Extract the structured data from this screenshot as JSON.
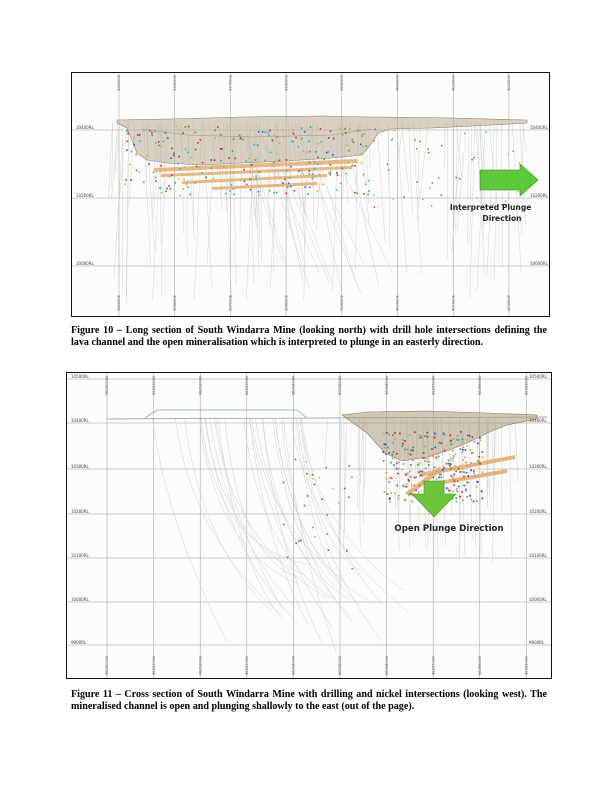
{
  "figure10": {
    "easting_labels": [
      "395000E",
      "396000E",
      "397000E",
      "398000E",
      "399000E",
      "400000E",
      "401000E",
      "402000E"
    ],
    "rl_labels": [
      "10400RL",
      "10200RL",
      "10000RL"
    ],
    "arrow_text": "Interpreted Plunge Direction",
    "arrow_color": "#5cc83a",
    "caption": "Figure 10 – Long section of South Windarra Mine (looking north) with drill hole intersections defining the lava channel and the open mineralisation which is interpreted to plunge in an easterly direction."
  },
  "figure11": {
    "northing_labels": [
      "6825000N",
      "6825100N",
      "6825200N",
      "6825300N",
      "6825400N",
      "6825500N",
      "6825600N",
      "6825700N",
      "6825800N",
      "6825900N"
    ],
    "rl_labels": [
      "10500RL",
      "10400RL",
      "10300RL",
      "10200RL",
      "10100RL",
      "10000RL",
      "9900RL"
    ],
    "arrow_text": "Open Plunge Direction",
    "arrow_color": "#6fc23c",
    "caption": "Figure 11 – Cross section of South Windarra Mine with drilling and nickel intersections (looking west).  The mineralised channel is open and plunging shallowly to the east (out of the page)."
  }
}
